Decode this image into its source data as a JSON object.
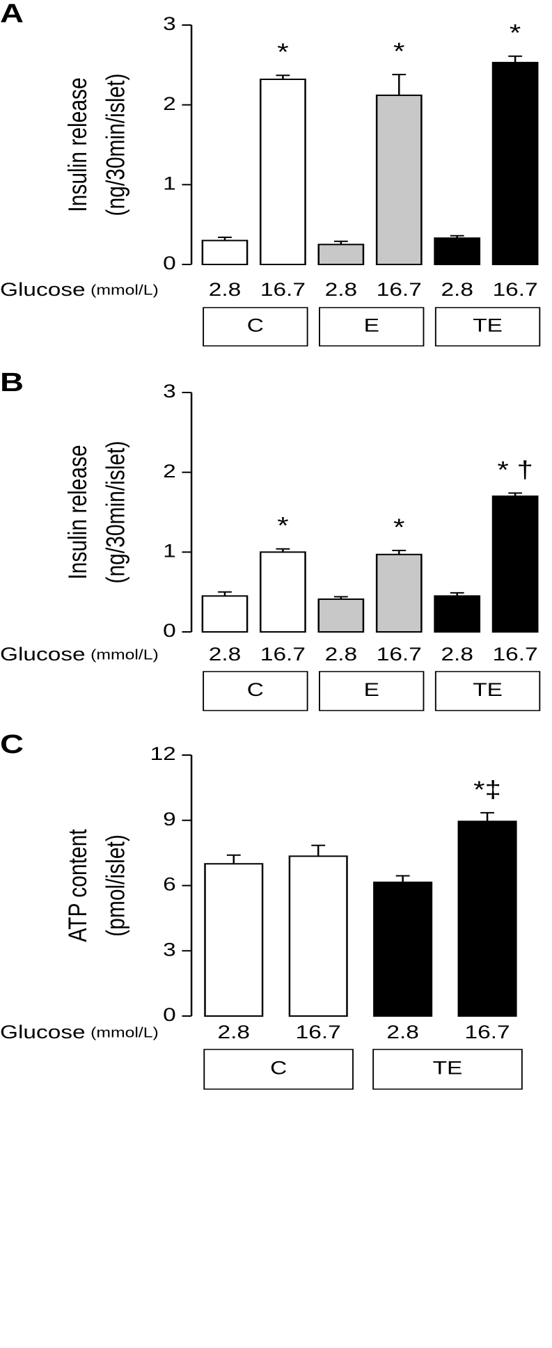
{
  "chart_data": [
    {
      "type": "bar",
      "panel_label": "A",
      "ylabel": [
        "Insulin release",
        "(ng/30min/islet)"
      ],
      "xlabel": "Glucose",
      "xlabel_unit": "(mmol/L)",
      "categories": [
        "2.8",
        "16.7",
        "2.8",
        "16.7",
        "2.8",
        "16.7"
      ],
      "values": [
        0.3,
        2.32,
        0.25,
        2.12,
        0.33,
        2.53
      ],
      "errors": [
        0.04,
        0.05,
        0.04,
        0.26,
        0.03,
        0.08
      ],
      "colors": [
        "#ffffff",
        "#ffffff",
        "#c8c8c8",
        "#c8c8c8",
        "#000000",
        "#000000"
      ],
      "annotations": [
        null,
        "*",
        null,
        "*",
        null,
        "*"
      ],
      "groups": [
        "C",
        "E",
        "TE"
      ],
      "ylim": [
        0,
        3
      ],
      "yticks": [
        0,
        1,
        2,
        3
      ]
    },
    {
      "type": "bar",
      "panel_label": "B",
      "ylabel": [
        "Insulin release",
        "(ng/30min/islet)"
      ],
      "xlabel": "Glucose",
      "xlabel_unit": "(mmol/L)",
      "categories": [
        "2.8",
        "16.7",
        "2.8",
        "16.7",
        "2.8",
        "16.7"
      ],
      "values": [
        0.45,
        1.0,
        0.41,
        0.97,
        0.45,
        1.7
      ],
      "errors": [
        0.05,
        0.04,
        0.03,
        0.05,
        0.04,
        0.04
      ],
      "colors": [
        "#ffffff",
        "#ffffff",
        "#c8c8c8",
        "#c8c8c8",
        "#000000",
        "#000000"
      ],
      "annotations": [
        null,
        "*",
        null,
        "*",
        null,
        "* †"
      ],
      "groups": [
        "C",
        "E",
        "TE"
      ],
      "ylim": [
        0,
        3
      ],
      "yticks": [
        0,
        1,
        2,
        3
      ]
    },
    {
      "type": "bar",
      "panel_label": "C",
      "ylabel": [
        "ATP content",
        "(pmol/islet)"
      ],
      "xlabel": "Glucose",
      "xlabel_unit": "(mmol/L)",
      "categories": [
        "2.8",
        "16.7",
        "2.8",
        "16.7"
      ],
      "values": [
        7.0,
        7.35,
        6.15,
        8.95
      ],
      "errors": [
        0.4,
        0.5,
        0.3,
        0.4
      ],
      "colors": [
        "#ffffff",
        "#ffffff",
        "#000000",
        "#000000"
      ],
      "annotations": [
        null,
        null,
        null,
        "*‡"
      ],
      "groups": [
        "C",
        "TE"
      ],
      "ylim": [
        0,
        12
      ],
      "yticks": [
        0,
        3,
        6,
        9,
        12
      ]
    }
  ]
}
